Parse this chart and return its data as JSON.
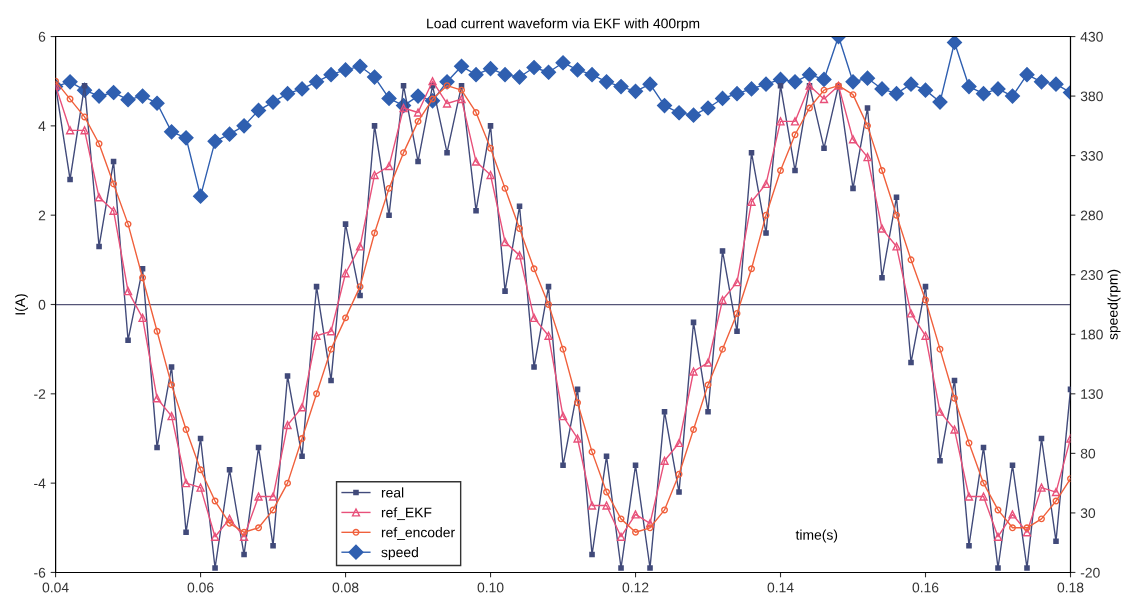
{
  "chart_data": {
    "type": "line",
    "title": "Load current waveform via EKF with 400rpm",
    "xlabel": "time(s)",
    "ylabel": "I(A)",
    "y2label": "speed(rpm)",
    "x": [
      0.04,
      0.042,
      0.044,
      0.046,
      0.048,
      0.05,
      0.052,
      0.054,
      0.056,
      0.058,
      0.06,
      0.062,
      0.064,
      0.066,
      0.068,
      0.07,
      0.072,
      0.074,
      0.076,
      0.078,
      0.08,
      0.082,
      0.084,
      0.086,
      0.088,
      0.09,
      0.092,
      0.094,
      0.096,
      0.098,
      0.1,
      0.102,
      0.104,
      0.106,
      0.108,
      0.11,
      0.112,
      0.114,
      0.116,
      0.118,
      0.12,
      0.122,
      0.124,
      0.126,
      0.128,
      0.13,
      0.132,
      0.134,
      0.136,
      0.138,
      0.14,
      0.142,
      0.144,
      0.146,
      0.148,
      0.15,
      0.152,
      0.154,
      0.156,
      0.158,
      0.16,
      0.162,
      0.164,
      0.166,
      0.168,
      0.17,
      0.172,
      0.174,
      0.176,
      0.178,
      0.18
    ],
    "series": [
      {
        "name": "real",
        "color": "#414a7a",
        "marker": "square",
        "values": [
          4.9,
          2.8,
          4.9,
          1.3,
          3.2,
          -0.8,
          0.8,
          -3.2,
          -1.4,
          -5.1,
          -3.0,
          -5.9,
          -3.7,
          -5.6,
          -3.2,
          -5.4,
          -1.6,
          -3.4,
          0.4,
          -1.7,
          1.8,
          0.2,
          4.0,
          2.0,
          4.9,
          3.2,
          4.9,
          3.4,
          4.9,
          2.1,
          4.0,
          0.3,
          2.2,
          -1.4,
          0.4,
          -3.6,
          -1.9,
          -5.6,
          -3.4,
          -5.9,
          -3.6,
          -5.9,
          -2.4,
          -4.2,
          -0.4,
          -2.4,
          1.2,
          -0.6,
          3.4,
          1.6,
          4.9,
          3.0,
          4.9,
          3.5,
          4.9,
          2.6,
          4.4,
          0.6,
          2.4,
          -1.3,
          0.4,
          -3.5,
          -1.7,
          -5.4,
          -3.2,
          -5.9,
          -3.6,
          -5.9,
          -3.0,
          -5.3,
          -1.9
        ]
      },
      {
        "name": "ref_EKF",
        "color": "#e8507a",
        "marker": "triangle",
        "values": [
          4.9,
          3.9,
          3.9,
          2.4,
          2.1,
          0.3,
          -0.3,
          -2.1,
          -2.5,
          -4.0,
          -4.1,
          -5.2,
          -4.8,
          -5.2,
          -4.3,
          -4.3,
          -2.7,
          -2.3,
          -0.7,
          -0.6,
          0.7,
          1.3,
          2.9,
          3.1,
          4.4,
          4.3,
          5.0,
          4.5,
          4.6,
          3.2,
          2.9,
          1.4,
          1.1,
          -0.3,
          -0.7,
          -2.5,
          -3.0,
          -4.5,
          -4.5,
          -5.2,
          -4.7,
          -4.9,
          -3.5,
          -3.1,
          -1.5,
          -1.3,
          0.1,
          0.5,
          2.3,
          2.7,
          4.1,
          4.1,
          4.9,
          4.6,
          4.9,
          3.7,
          3.3,
          1.7,
          1.3,
          -0.2,
          -0.7,
          -2.4,
          -2.8,
          -4.3,
          -4.3,
          -5.2,
          -4.7,
          -5.1,
          -4.1,
          -4.2,
          -3.0
        ]
      },
      {
        "name": "ref_encoder",
        "color": "#f0603c",
        "marker": "circle",
        "values": [
          5.0,
          4.6,
          4.2,
          3.6,
          2.7,
          1.8,
          0.6,
          -0.6,
          -1.8,
          -2.8,
          -3.7,
          -4.4,
          -4.9,
          -5.1,
          -5.0,
          -4.6,
          -4.0,
          -3.0,
          -2.0,
          -1.0,
          -0.3,
          0.4,
          1.6,
          2.6,
          3.4,
          4.1,
          4.6,
          4.9,
          4.8,
          4.3,
          3.5,
          2.6,
          1.7,
          0.8,
          0.0,
          -1.0,
          -2.2,
          -3.3,
          -4.2,
          -4.8,
          -5.1,
          -5.0,
          -4.6,
          -3.8,
          -2.8,
          -1.8,
          -1.0,
          -0.2,
          0.8,
          2.0,
          3.0,
          3.8,
          4.4,
          4.8,
          4.9,
          4.7,
          4.0,
          3.0,
          2.0,
          1.0,
          0.1,
          -1.0,
          -2.1,
          -3.1,
          -4.0,
          -4.6,
          -5.0,
          -5.0,
          -4.8,
          -4.4,
          -3.9
        ]
      },
      {
        "name": "speed",
        "color": "#2f5fb0",
        "marker": "diamond",
        "axis": "y2",
        "values": [
          388,
          392,
          385,
          380,
          383,
          377,
          380,
          374,
          350,
          345,
          296,
          342,
          348,
          355,
          368,
          375,
          382,
          386,
          392,
          398,
          402,
          405,
          396,
          378,
          372,
          380,
          376,
          392,
          405,
          398,
          403,
          398,
          396,
          404,
          400,
          408,
          402,
          398,
          392,
          388,
          384,
          390,
          372,
          366,
          364,
          370,
          378,
          382,
          386,
          390,
          394,
          392,
          398,
          394,
          430,
          392,
          395,
          386,
          382,
          390,
          385,
          375,
          425,
          388,
          382,
          386,
          380,
          398,
          392,
          390,
          383
        ]
      }
    ],
    "xlim": [
      0.04,
      0.18
    ],
    "xticks": [
      0.04,
      0.06,
      0.08,
      {
        "value": 0.1,
        "label": "0.10"
      },
      0.12,
      0.14,
      0.16,
      0.18
    ],
    "ylim": [
      -6,
      6
    ],
    "yticks": [
      -6,
      -4,
      -2,
      0,
      2,
      4,
      6
    ],
    "y2lim": [
      -20,
      430
    ],
    "y2ticks": [
      -20,
      30,
      80,
      130,
      180,
      230,
      280,
      330,
      380,
      430
    ],
    "ref_lines": [
      {
        "axis": "y",
        "value": 0,
        "color": "#555577"
      }
    ],
    "legend": "bottom left",
    "line_style": "solid"
  }
}
